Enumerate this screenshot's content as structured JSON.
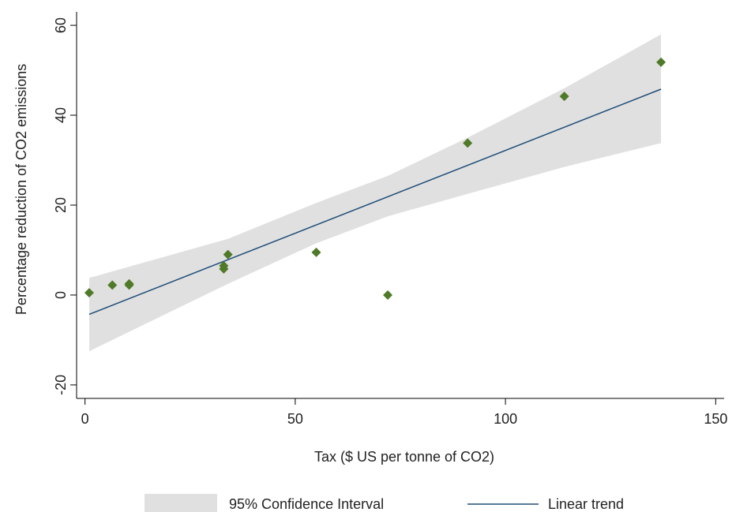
{
  "chart_data": {
    "type": "scatter",
    "xlabel": "Tax ($ US per tonne of CO2)",
    "ylabel": "Percentage reduction of CO2 emissions",
    "xlim": [
      -2,
      152
    ],
    "ylim": [
      -23,
      63
    ],
    "x_ticks": [
      0,
      50,
      100,
      150
    ],
    "y_ticks": [
      -20,
      0,
      20,
      40,
      60
    ],
    "grid": false,
    "legend_position": "bottom",
    "points": [
      {
        "x": 1,
        "y": 0.5
      },
      {
        "x": 6.5,
        "y": 2.2
      },
      {
        "x": 10.5,
        "y": 2.5
      },
      {
        "x": 10.5,
        "y": 2.2
      },
      {
        "x": 33,
        "y": 6.5
      },
      {
        "x": 33,
        "y": 5.8
      },
      {
        "x": 34,
        "y": 9
      },
      {
        "x": 55,
        "y": 9.5
      },
      {
        "x": 72,
        "y": 0
      },
      {
        "x": 91,
        "y": 33.8
      },
      {
        "x": 114,
        "y": 44.2
      },
      {
        "x": 137,
        "y": 51.8
      }
    ],
    "trend": {
      "name": "Linear trend",
      "x": [
        1,
        137
      ],
      "y": [
        -4.3,
        45.8
      ]
    },
    "confidence_band": {
      "name": "95% Confidence Interval",
      "x": [
        1,
        34,
        55,
        72,
        91,
        114,
        137
      ],
      "lower": [
        -12.5,
        2.5,
        11.5,
        17.5,
        22.5,
        28.5,
        33.8
      ],
      "upper": [
        3.8,
        12.5,
        20.5,
        26.5,
        35,
        46,
        58
      ]
    },
    "colors": {
      "points": "#4f7a28",
      "trend": "#1f4e79",
      "band": "#e0e0e0",
      "axis": "#000000"
    }
  }
}
